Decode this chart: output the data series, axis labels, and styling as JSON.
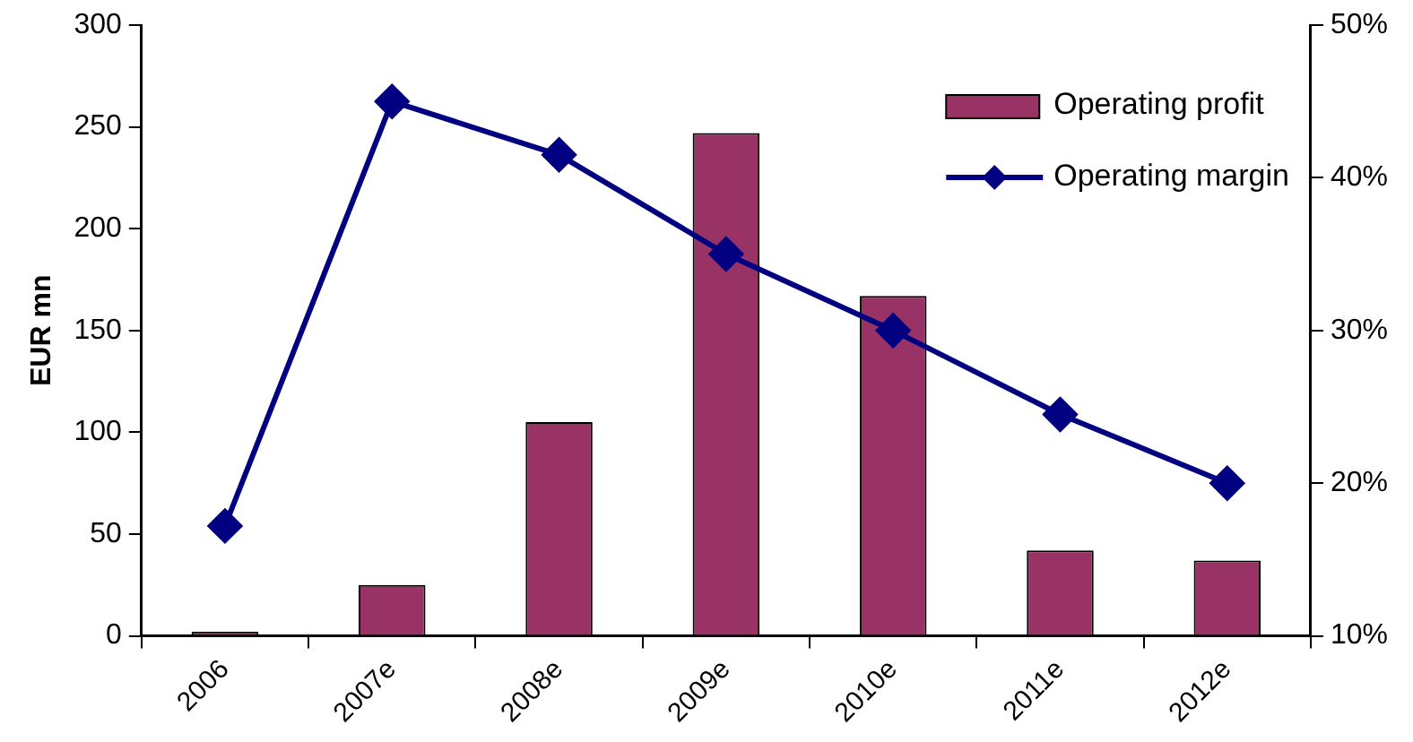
{
  "chart_data": {
    "type": "bar",
    "ylabel": "EUR mn",
    "categories": [
      "2006",
      "2007e",
      "2008e",
      "2009e",
      "2010e",
      "2011e",
      "2012e"
    ],
    "series": [
      {
        "name": "Operating profit",
        "type": "bar",
        "color": "#993366",
        "values": [
          2,
          25,
          105,
          247,
          167,
          42,
          37
        ]
      },
      {
        "name": "Operating margin",
        "type": "line",
        "axis": "y2",
        "color": "#000080",
        "marker": "diamond",
        "values": [
          17.2,
          45,
          41.5,
          35,
          30,
          24.5,
          20
        ]
      }
    ],
    "ylim": [
      0,
      300
    ],
    "yticks": [
      0,
      50,
      100,
      150,
      200,
      250,
      300
    ],
    "y2lim": [
      10,
      50
    ],
    "y2ticks": [
      {
        "value": 10,
        "label": "10%"
      },
      {
        "value": 20,
        "label": "20%"
      },
      {
        "value": 30,
        "label": "30%"
      },
      {
        "value": 40,
        "label": "40%"
      },
      {
        "value": 50,
        "label": "50%"
      }
    ],
    "grid": false,
    "legend": "top right"
  }
}
